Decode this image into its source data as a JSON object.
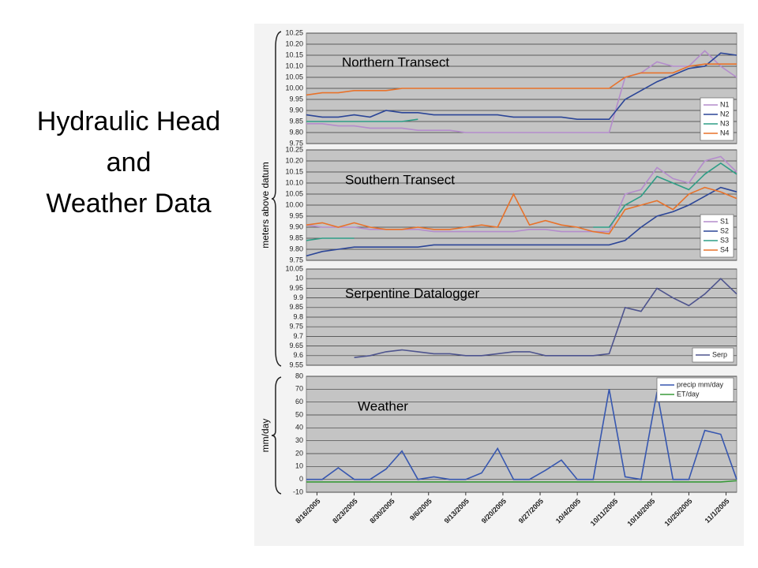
{
  "slide": {
    "title_lines": [
      "Hydraulic Head",
      "and",
      "Weather Data"
    ],
    "ylabel": "meters above datum"
  },
  "chart_data": [
    {
      "type": "line",
      "title": "Northern Transect",
      "legend": "lower right",
      "grid": true,
      "x": [
        "2005-08-14",
        "2005-08-17",
        "2005-08-20",
        "2005-08-23",
        "2005-08-26",
        "2005-08-29",
        "2005-09-01",
        "2005-09-04",
        "2005-09-07",
        "2005-09-10",
        "2005-09-13",
        "2005-09-16",
        "2005-09-19",
        "2005-09-22",
        "2005-09-25",
        "2005-09-28",
        "2005-10-01",
        "2005-10-04",
        "2005-10-07",
        "2005-10-10",
        "2005-10-13",
        "2005-10-16",
        "2005-10-19",
        "2005-10-22",
        "2005-10-25",
        "2005-10-28",
        "2005-10-31",
        "2005-11-03"
      ],
      "xlim": [
        "2005-08-14",
        "2005-11-03"
      ],
      "ylim": [
        9.75,
        10.25
      ],
      "yticks": [
        9.75,
        {
          "value": 9.8,
          "label": "9.80"
        },
        9.85,
        {
          "value": 9.9,
          "label": "9.90"
        },
        9.95,
        {
          "value": 10,
          "label": "10.00"
        },
        10.05,
        {
          "value": 10.1,
          "label": "10.10"
        },
        10.15,
        {
          "value": 10.2,
          "label": "10.20"
        },
        10.25
      ],
      "series": [
        {
          "name": "N1",
          "color": "#b48ccc",
          "values": [
            9.84,
            9.84,
            9.83,
            9.83,
            9.82,
            9.82,
            9.82,
            9.81,
            9.81,
            9.81,
            9.8,
            9.8,
            9.8,
            9.8,
            9.8,
            9.8,
            9.8,
            9.8,
            9.8,
            9.8,
            10.05,
            10.07,
            10.12,
            10.1,
            10.1,
            10.17,
            10.1,
            10.05
          ]
        },
        {
          "name": "N2",
          "color": "#2b4597",
          "values": [
            9.88,
            9.87,
            9.87,
            9.88,
            9.87,
            9.9,
            9.89,
            9.89,
            9.88,
            9.88,
            9.88,
            9.88,
            9.88,
            9.87,
            9.87,
            9.87,
            9.87,
            9.86,
            9.86,
            9.86,
            9.95,
            9.99,
            10.03,
            10.06,
            10.09,
            10.1,
            10.16,
            10.15
          ]
        },
        {
          "name": "N3",
          "color": "#2e9d86",
          "values": [
            9.85,
            9.85,
            9.85,
            9.85,
            9.85,
            9.85,
            9.85,
            9.86,
            null,
            null,
            null,
            null,
            null,
            null,
            null,
            null,
            null,
            null,
            null,
            null,
            null,
            null,
            null,
            null,
            null,
            null,
            null,
            null
          ]
        },
        {
          "name": "N4",
          "color": "#e8722a",
          "values": [
            9.97,
            9.98,
            9.98,
            9.99,
            9.99,
            9.99,
            10.0,
            10.0,
            10.0,
            10.0,
            10.0,
            10.0,
            10.0,
            10.0,
            10.0,
            10.0,
            10.0,
            10.0,
            10.0,
            10.0,
            10.05,
            10.07,
            10.07,
            10.07,
            10.1,
            10.11,
            10.11,
            10.11
          ]
        }
      ]
    },
    {
      "type": "line",
      "title": "Southern Transect",
      "legend": "lower right",
      "grid": true,
      "x": [
        "2005-08-14",
        "2005-08-17",
        "2005-08-20",
        "2005-08-23",
        "2005-08-26",
        "2005-08-29",
        "2005-09-01",
        "2005-09-04",
        "2005-09-07",
        "2005-09-10",
        "2005-09-13",
        "2005-09-16",
        "2005-09-19",
        "2005-09-22",
        "2005-09-25",
        "2005-09-28",
        "2005-10-01",
        "2005-10-04",
        "2005-10-07",
        "2005-10-10",
        "2005-10-13",
        "2005-10-16",
        "2005-10-19",
        "2005-10-22",
        "2005-10-25",
        "2005-10-28",
        "2005-10-31",
        "2005-11-03"
      ],
      "xlim": [
        "2005-08-14",
        "2005-11-03"
      ],
      "ylim": [
        9.75,
        10.25
      ],
      "yticks": [
        9.75,
        {
          "value": 9.8,
          "label": "9.80"
        },
        9.85,
        {
          "value": 9.9,
          "label": "9.90"
        },
        9.95,
        {
          "value": 10,
          "label": "10.00"
        },
        10.05,
        {
          "value": 10.1,
          "label": "10.10"
        },
        10.15,
        {
          "value": 10.2,
          "label": "10.20"
        },
        10.25
      ],
      "series": [
        {
          "name": "S1",
          "color": "#b48ccc",
          "values": [
            9.91,
            9.9,
            9.9,
            9.9,
            9.89,
            9.89,
            9.89,
            9.89,
            9.88,
            9.88,
            9.88,
            9.88,
            9.88,
            9.88,
            9.89,
            9.89,
            9.88,
            9.88,
            9.88,
            9.88,
            10.05,
            10.07,
            10.17,
            10.12,
            10.1,
            10.2,
            10.22,
            10.15
          ]
        },
        {
          "name": "S2",
          "color": "#2b4597",
          "values": [
            9.77,
            9.79,
            9.8,
            9.81,
            9.81,
            9.81,
            9.81,
            9.81,
            9.82,
            9.82,
            9.82,
            9.82,
            9.82,
            9.82,
            9.82,
            9.82,
            9.82,
            9.82,
            9.82,
            9.82,
            9.84,
            9.9,
            9.95,
            9.97,
            10.0,
            10.04,
            10.08,
            10.06
          ]
        },
        {
          "name": "S3",
          "color": "#2e9d86",
          "values": [
            9.84,
            9.85,
            9.85,
            9.85,
            null,
            null,
            null,
            null,
            null,
            null,
            null,
            null,
            null,
            null,
            null,
            null,
            null,
            null,
            9.9,
            9.9,
            10.0,
            10.04,
            10.13,
            10.1,
            10.07,
            10.14,
            10.19,
            10.14
          ]
        },
        {
          "name": "S4",
          "color": "#e8722a",
          "values": [
            9.91,
            9.92,
            9.9,
            9.92,
            9.9,
            9.89,
            9.89,
            9.9,
            9.89,
            9.89,
            9.9,
            9.91,
            9.9,
            10.05,
            9.91,
            9.93,
            9.91,
            9.9,
            9.88,
            9.87,
            9.98,
            10.0,
            10.02,
            9.98,
            10.05,
            10.08,
            10.06,
            10.03
          ]
        }
      ]
    },
    {
      "type": "line",
      "title": "Serpentine Datalogger",
      "legend": "lower right",
      "grid": true,
      "x": [
        "2005-08-14",
        "2005-08-17",
        "2005-08-20",
        "2005-08-23",
        "2005-08-26",
        "2005-08-29",
        "2005-09-01",
        "2005-09-04",
        "2005-09-07",
        "2005-09-10",
        "2005-09-13",
        "2005-09-16",
        "2005-09-19",
        "2005-09-22",
        "2005-09-25",
        "2005-09-28",
        "2005-10-01",
        "2005-10-04",
        "2005-10-07",
        "2005-10-10",
        "2005-10-13",
        "2005-10-16",
        "2005-10-19",
        "2005-10-22",
        "2005-10-25",
        "2005-10-28",
        "2005-10-31",
        "2005-11-03"
      ],
      "xlim": [
        "2005-08-14",
        "2005-11-03"
      ],
      "ylim": [
        9.55,
        10.05
      ],
      "yticks": [
        9.55,
        9.6,
        9.65,
        9.7,
        9.75,
        9.8,
        9.85,
        9.9,
        9.95,
        10,
        10.05
      ],
      "series": [
        {
          "name": "Serp",
          "color": "#4e548e",
          "values": [
            null,
            null,
            null,
            9.59,
            9.6,
            9.62,
            9.63,
            9.62,
            9.61,
            9.61,
            9.6,
            9.6,
            9.61,
            9.62,
            9.62,
            9.6,
            9.6,
            9.6,
            9.6,
            9.61,
            9.85,
            9.83,
            9.95,
            9.9,
            9.86,
            9.92,
            10.0,
            9.92
          ]
        }
      ]
    },
    {
      "type": "line",
      "title": "Weather",
      "ylabel": "mm/day",
      "legend": "upper right",
      "grid": true,
      "x": [
        "2005-08-14",
        "2005-08-17",
        "2005-08-20",
        "2005-08-23",
        "2005-08-26",
        "2005-08-29",
        "2005-09-01",
        "2005-09-04",
        "2005-09-07",
        "2005-09-10",
        "2005-09-13",
        "2005-09-16",
        "2005-09-19",
        "2005-09-22",
        "2005-09-25",
        "2005-09-28",
        "2005-10-01",
        "2005-10-04",
        "2005-10-07",
        "2005-10-10",
        "2005-10-13",
        "2005-10-16",
        "2005-10-19",
        "2005-10-22",
        "2005-10-25",
        "2005-10-28",
        "2005-10-31",
        "2005-11-03"
      ],
      "xlim": [
        "2005-08-14",
        "2005-11-03"
      ],
      "ylim": [
        -10,
        80
      ],
      "yticks": [
        -10,
        0,
        10,
        20,
        30,
        40,
        50,
        60,
        70,
        80
      ],
      "xticks": [
        {
          "value": "2005-08-16",
          "label": "8/16/2005"
        },
        {
          "value": "2005-08-23",
          "label": "8/23/2005"
        },
        {
          "value": "2005-08-30",
          "label": "8/30/2005"
        },
        {
          "value": "2005-09-06",
          "label": "9/6/2005"
        },
        {
          "value": "2005-09-13",
          "label": "9/13/2005"
        },
        {
          "value": "2005-09-20",
          "label": "9/20/2005"
        },
        {
          "value": "2005-09-27",
          "label": "9/27/2005"
        },
        {
          "value": "2005-10-04",
          "label": "10/4/2005"
        },
        {
          "value": "2005-10-11",
          "label": "10/11/2005"
        },
        {
          "value": "2005-10-18",
          "label": "10/18/2005"
        },
        {
          "value": "2005-10-25",
          "label": "10/25/2005"
        },
        {
          "value": "2005-11-01",
          "label": "11/1/2005"
        }
      ],
      "series": [
        {
          "name": "precip mm/day",
          "color": "#3757b0",
          "values": [
            0,
            0,
            9,
            0,
            0,
            8,
            22,
            0,
            2,
            0,
            0,
            5,
            24,
            0,
            0,
            7,
            15,
            0,
            0,
            70,
            2,
            0,
            68,
            0,
            0,
            38,
            35,
            0
          ]
        },
        {
          "name": "ET/day",
          "color": "#3a9a3a",
          "values": [
            -2,
            -2,
            -2,
            -2,
            -2,
            -2,
            -2,
            -2,
            -2,
            -2,
            -2,
            -2,
            -2,
            -2,
            -2,
            -2,
            -2,
            -2,
            -2,
            -2,
            -2,
            -2,
            -2,
            -2,
            -2,
            -2,
            -2,
            -1
          ]
        }
      ]
    }
  ]
}
